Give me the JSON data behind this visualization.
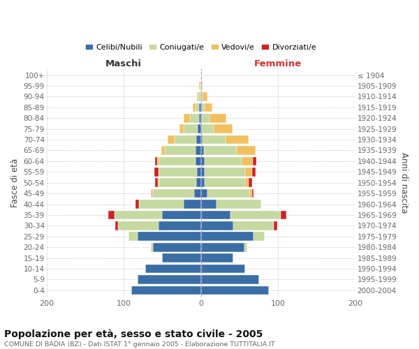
{
  "age_groups": [
    "100+",
    "95-99",
    "90-94",
    "85-89",
    "80-84",
    "75-79",
    "70-74",
    "65-69",
    "60-64",
    "55-59",
    "50-54",
    "45-49",
    "40-44",
    "35-39",
    "30-34",
    "25-29",
    "20-24",
    "15-19",
    "10-14",
    "5-9",
    "0-4"
  ],
  "birth_years": [
    "≤ 1904",
    "1905-1909",
    "1910-1914",
    "1915-1919",
    "1920-1924",
    "1925-1929",
    "1930-1934",
    "1935-1939",
    "1940-1944",
    "1945-1949",
    "1950-1954",
    "1955-1959",
    "1960-1964",
    "1965-1969",
    "1970-1974",
    "1975-1979",
    "1980-1984",
    "1985-1989",
    "1990-1994",
    "1995-1999",
    "2000-2004"
  ],
  "males": {
    "celibi": [
      0,
      0,
      0,
      2,
      2,
      4,
      6,
      7,
      7,
      5,
      6,
      9,
      22,
      50,
      55,
      82,
      62,
      50,
      72,
      82,
      90
    ],
    "coniugati": [
      0,
      1,
      3,
      5,
      12,
      18,
      28,
      40,
      47,
      50,
      48,
      53,
      58,
      62,
      52,
      12,
      3,
      0,
      0,
      0,
      0
    ],
    "vedovi": [
      0,
      1,
      2,
      4,
      8,
      6,
      9,
      4,
      3,
      0,
      2,
      1,
      0,
      0,
      0,
      0,
      0,
      0,
      0,
      0,
      0
    ],
    "divorziati": [
      0,
      0,
      0,
      0,
      0,
      0,
      0,
      0,
      2,
      5,
      3,
      1,
      5,
      8,
      4,
      0,
      0,
      0,
      0,
      0,
      0
    ]
  },
  "females": {
    "nubili": [
      0,
      0,
      1,
      1,
      1,
      1,
      2,
      4,
      5,
      5,
      5,
      8,
      20,
      38,
      42,
      68,
      56,
      42,
      57,
      75,
      88
    ],
    "coniugate": [
      0,
      0,
      1,
      4,
      10,
      16,
      30,
      42,
      48,
      52,
      52,
      55,
      58,
      65,
      52,
      15,
      4,
      0,
      0,
      0,
      0
    ],
    "vedove": [
      0,
      2,
      6,
      10,
      22,
      24,
      30,
      25,
      14,
      9,
      5,
      3,
      0,
      0,
      0,
      0,
      0,
      0,
      0,
      0,
      0
    ],
    "divorziate": [
      0,
      0,
      0,
      0,
      0,
      0,
      0,
      0,
      5,
      5,
      4,
      2,
      0,
      8,
      5,
      0,
      0,
      0,
      0,
      0,
      0
    ]
  },
  "color_celibi": "#3a6ea5",
  "color_coniugati": "#c5d9a0",
  "color_vedovi": "#f0c060",
  "color_divorziati": "#cc2222",
  "xlim": 200,
  "title": "Popolazione per età, sesso e stato civile - 2005",
  "subtitle": "COMUNE DI BADIA (BZ) - Dati ISTAT 1° gennaio 2005 - Elaborazione TUTTITALIA.IT",
  "ylabel": "Fasce di età",
  "y2label": "Anni di nascita",
  "bg_color": "#ffffff",
  "grid_color": "#cccccc",
  "maschi_label": "Maschi",
  "femmine_label": "Femmine",
  "legend_labels": [
    "Celibi/Nubili",
    "Coniugati/e",
    "Vedovi/e",
    "Divorziati/e"
  ]
}
